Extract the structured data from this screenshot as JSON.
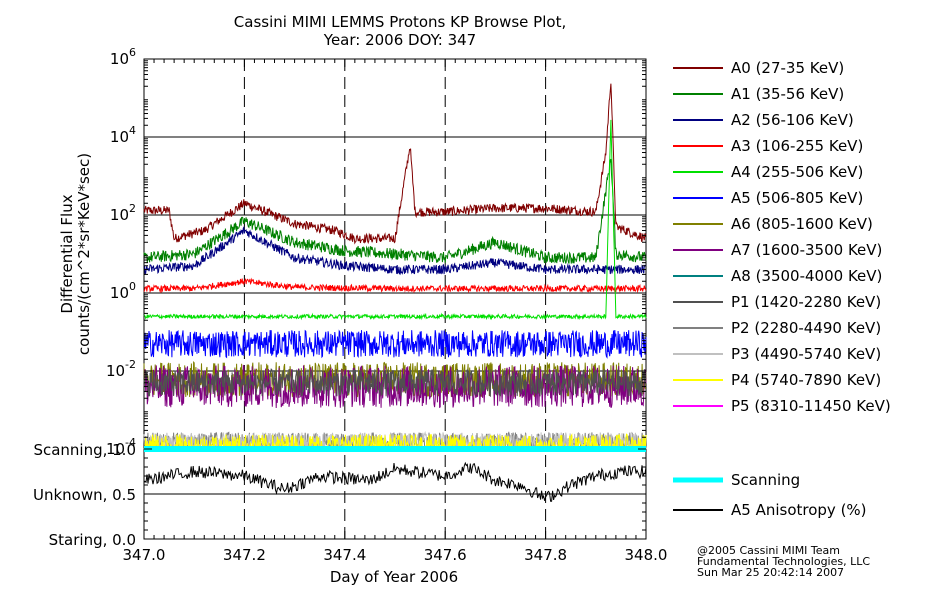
{
  "title": "Cassini MIMI LEMMS Protons KP Browse Plot,",
  "subtitle": "Year: 2006 DOY: 347",
  "credits": [
    "@2005 Cassini MIMI Team",
    "Fundamental Technologies, LLC",
    "Sun Mar 25 20:42:14 2007"
  ],
  "chart_data": [
    {
      "type": "line",
      "title": "Cassini MIMI LEMMS Protons KP Browse Plot, Year: 2006 DOY: 347",
      "xlabel": "Day of Year 2006",
      "ylabel": "Differential Flux",
      "ylabel2": "counts/(cm^2*sr*KeV*sec)",
      "y_scale": "log",
      "xlim": [
        347.0,
        348.0
      ],
      "ylim": [
        0.0001,
        1000000
      ],
      "x_ticks": [
        "347.0",
        "347.2",
        "347.4",
        "347.6",
        "347.8",
        "348.0"
      ],
      "y_ticks": [
        {
          "base": "10",
          "exp": "-4"
        },
        {
          "base": "10",
          "exp": "-2"
        },
        {
          "base": "10",
          "exp": "0"
        },
        {
          "base": "10",
          "exp": "2"
        },
        {
          "base": "10",
          "exp": "4"
        },
        {
          "base": "10",
          "exp": "6"
        }
      ],
      "legend_position": "right",
      "series": [
        {
          "name": "A0 (27-35 KeV)",
          "color": "#800000",
          "x": [
            347.0,
            347.05,
            347.06,
            347.12,
            347.2,
            347.3,
            347.38,
            347.42,
            347.5,
            347.53,
            347.54,
            347.6,
            347.7,
            347.8,
            347.9,
            347.92,
            347.93,
            347.94,
            348.0
          ],
          "y": [
            130,
            130,
            25,
            40,
            200,
            60,
            40,
            25,
            25,
            6000,
            120,
            120,
            150,
            150,
            120,
            4000,
            300000,
            50,
            25
          ]
        },
        {
          "name": "A1 (35-56 KeV)",
          "color": "#008000",
          "x": [
            347.0,
            347.1,
            347.2,
            347.3,
            347.4,
            347.5,
            347.6,
            347.7,
            347.8,
            347.9,
            347.93,
            347.94,
            348.0
          ],
          "y": [
            8,
            10,
            70,
            20,
            12,
            10,
            8,
            20,
            8,
            8,
            3000,
            10,
            8
          ]
        },
        {
          "name": "A2 (56-106 KeV)",
          "color": "#000080",
          "x": [
            347.0,
            347.1,
            347.2,
            347.3,
            347.4,
            347.5,
            347.6,
            347.7,
            347.8,
            347.9,
            348.0
          ],
          "y": [
            4,
            5,
            40,
            8,
            5,
            4,
            4,
            6,
            4,
            4,
            4
          ]
        },
        {
          "name": "A3 (106-255 KeV)",
          "color": "#ff0000",
          "x": [
            347.0,
            347.1,
            347.2,
            347.3,
            347.5,
            347.7,
            347.9,
            348.0
          ],
          "y": [
            1.3,
            1.3,
            2,
            1.4,
            1.3,
            1.3,
            1.3,
            1.3
          ]
        },
        {
          "name": "A4 (255-506 KeV)",
          "color": "#00e000",
          "x": [
            347.0,
            347.2,
            347.4,
            347.6,
            347.8,
            347.92,
            347.93,
            347.94,
            348.0
          ],
          "y": [
            0.25,
            0.25,
            0.25,
            0.25,
            0.25,
            0.25,
            30000,
            0.25,
            0.25
          ]
        },
        {
          "name": "A5 (506-805 KeV)",
          "color": "#0000ff",
          "x": [
            347.0,
            347.2,
            347.4,
            347.6,
            347.8,
            348.0
          ],
          "y": [
            0.05,
            0.05,
            0.05,
            0.05,
            0.05,
            0.05
          ]
        },
        {
          "name": "A6 (805-1600 KeV)",
          "color": "#808000",
          "x": [
            347.0,
            347.2,
            347.4,
            347.6,
            347.8,
            348.0
          ],
          "y": [
            0.006,
            0.006,
            0.006,
            0.006,
            0.006,
            0.006
          ]
        },
        {
          "name": "A7 (1600-3500 KeV)",
          "color": "#800080",
          "x": [
            347.0,
            347.2,
            347.4,
            347.6,
            347.8,
            348.0
          ],
          "y": [
            0.004,
            0.004,
            0.004,
            0.004,
            0.004,
            0.004
          ]
        },
        {
          "name": "A8 (3500-4000 KeV)",
          "color": "#008080",
          "x": [],
          "y": []
        },
        {
          "name": "P1 (1420-2280 KeV)",
          "color": "#505050",
          "x": [
            347.0,
            347.2,
            347.4,
            347.6,
            347.8,
            348.0
          ],
          "y": [
            0.005,
            0.005,
            0.005,
            0.005,
            0.005,
            0.005
          ]
        },
        {
          "name": "P2 (2280-4490 KeV)",
          "color": "#808080",
          "x": [
            347.0,
            347.2,
            347.4,
            347.6,
            347.8,
            348.0
          ],
          "y": [
            0.00015,
            0.00015,
            0.00015,
            0.00015,
            0.00015,
            0.00015
          ]
        },
        {
          "name": "P3 (4490-5740 KeV)",
          "color": "#c0c0c0",
          "x": [
            347.0,
            347.2,
            347.4,
            347.6,
            347.8,
            348.0
          ],
          "y": [
            0.00015,
            0.00015,
            0.00015,
            0.00015,
            0.00015,
            0.00015
          ]
        },
        {
          "name": "P4 (5740-7890 KeV)",
          "color": "#ffff00",
          "x": [
            347.0,
            347.2,
            347.4,
            347.6,
            347.8,
            348.0
          ],
          "y": [
            0.00012,
            0.00012,
            0.00012,
            0.00012,
            0.00012,
            0.00012
          ]
        },
        {
          "name": "P5 (8310-11450 KeV)",
          "color": "#ff00ff",
          "x": [],
          "y": []
        }
      ]
    },
    {
      "type": "line",
      "xlabel": "Day of Year 2006",
      "xlim": [
        347.0,
        348.0
      ],
      "ylim": [
        0.0,
        1.0
      ],
      "y_ticks": [
        "Scanning, 1.0",
        "Unknown, 0.5",
        "Staring, 0.0"
      ],
      "legend_position": "right",
      "series": [
        {
          "name": "Scanning",
          "color": "#00ffff",
          "x": [
            347.0,
            348.0
          ],
          "y": [
            1.0,
            1.0
          ]
        },
        {
          "name": "A5 Anisotropy (%)",
          "color": "#000000",
          "x": [
            347.0,
            347.05,
            347.1,
            347.2,
            347.28,
            347.35,
            347.45,
            347.5,
            347.6,
            347.65,
            347.7,
            347.75,
            347.8,
            347.85,
            347.9,
            347.95,
            348.0
          ],
          "y": [
            0.65,
            0.7,
            0.75,
            0.7,
            0.55,
            0.7,
            0.65,
            0.78,
            0.7,
            0.8,
            0.65,
            0.6,
            0.45,
            0.6,
            0.7,
            0.75,
            0.75
          ]
        }
      ]
    }
  ]
}
